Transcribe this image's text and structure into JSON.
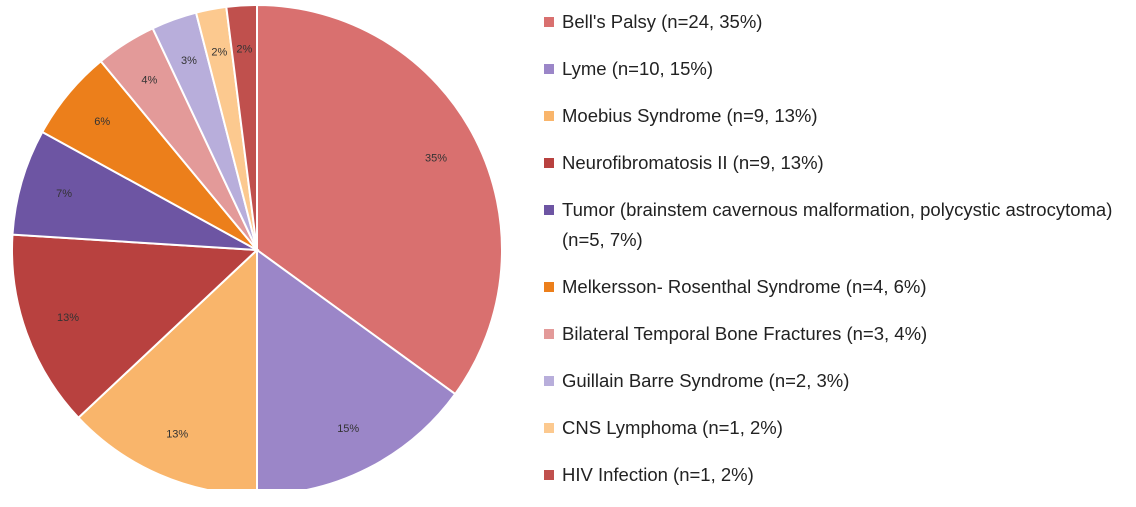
{
  "chart_data": {
    "type": "pie",
    "categories": [
      "Bell's Palsy (n=24, 35%)",
      "Lyme (n=10, 15%)",
      "Moebius Syndrome (n=9, 13%)",
      "Neurofibromatosis II (n=9, 13%)",
      "Tumor (brainstem cavernous malformation, polycystic astrocytoma) (n=5, 7%)",
      "Melkersson- Rosenthal Syndrome (n=4, 6%)",
      "Bilateral Temporal Bone Fractures  (n=3, 4%)",
      "Guillain Barre Syndrome (n=2, 3%)",
      "CNS Lymphoma (n=1, 2%)",
      "HIV Infection (n=1, 2%)"
    ],
    "values": [
      35,
      15,
      13,
      13,
      7,
      6,
      4,
      3,
      2,
      2
    ],
    "value_labels": [
      "35%",
      "15%",
      "13%",
      "13%",
      "7%",
      "6%",
      "4%",
      "3%",
      "2%",
      "2%"
    ],
    "colors": [
      "#d9706f",
      "#9b86c8",
      "#f9b56b",
      "#b8413f",
      "#6d55a3",
      "#ec7f1b",
      "#e39a99",
      "#b8aedb",
      "#fcc98f",
      "#c0504d"
    ],
    "legend": "right"
  }
}
